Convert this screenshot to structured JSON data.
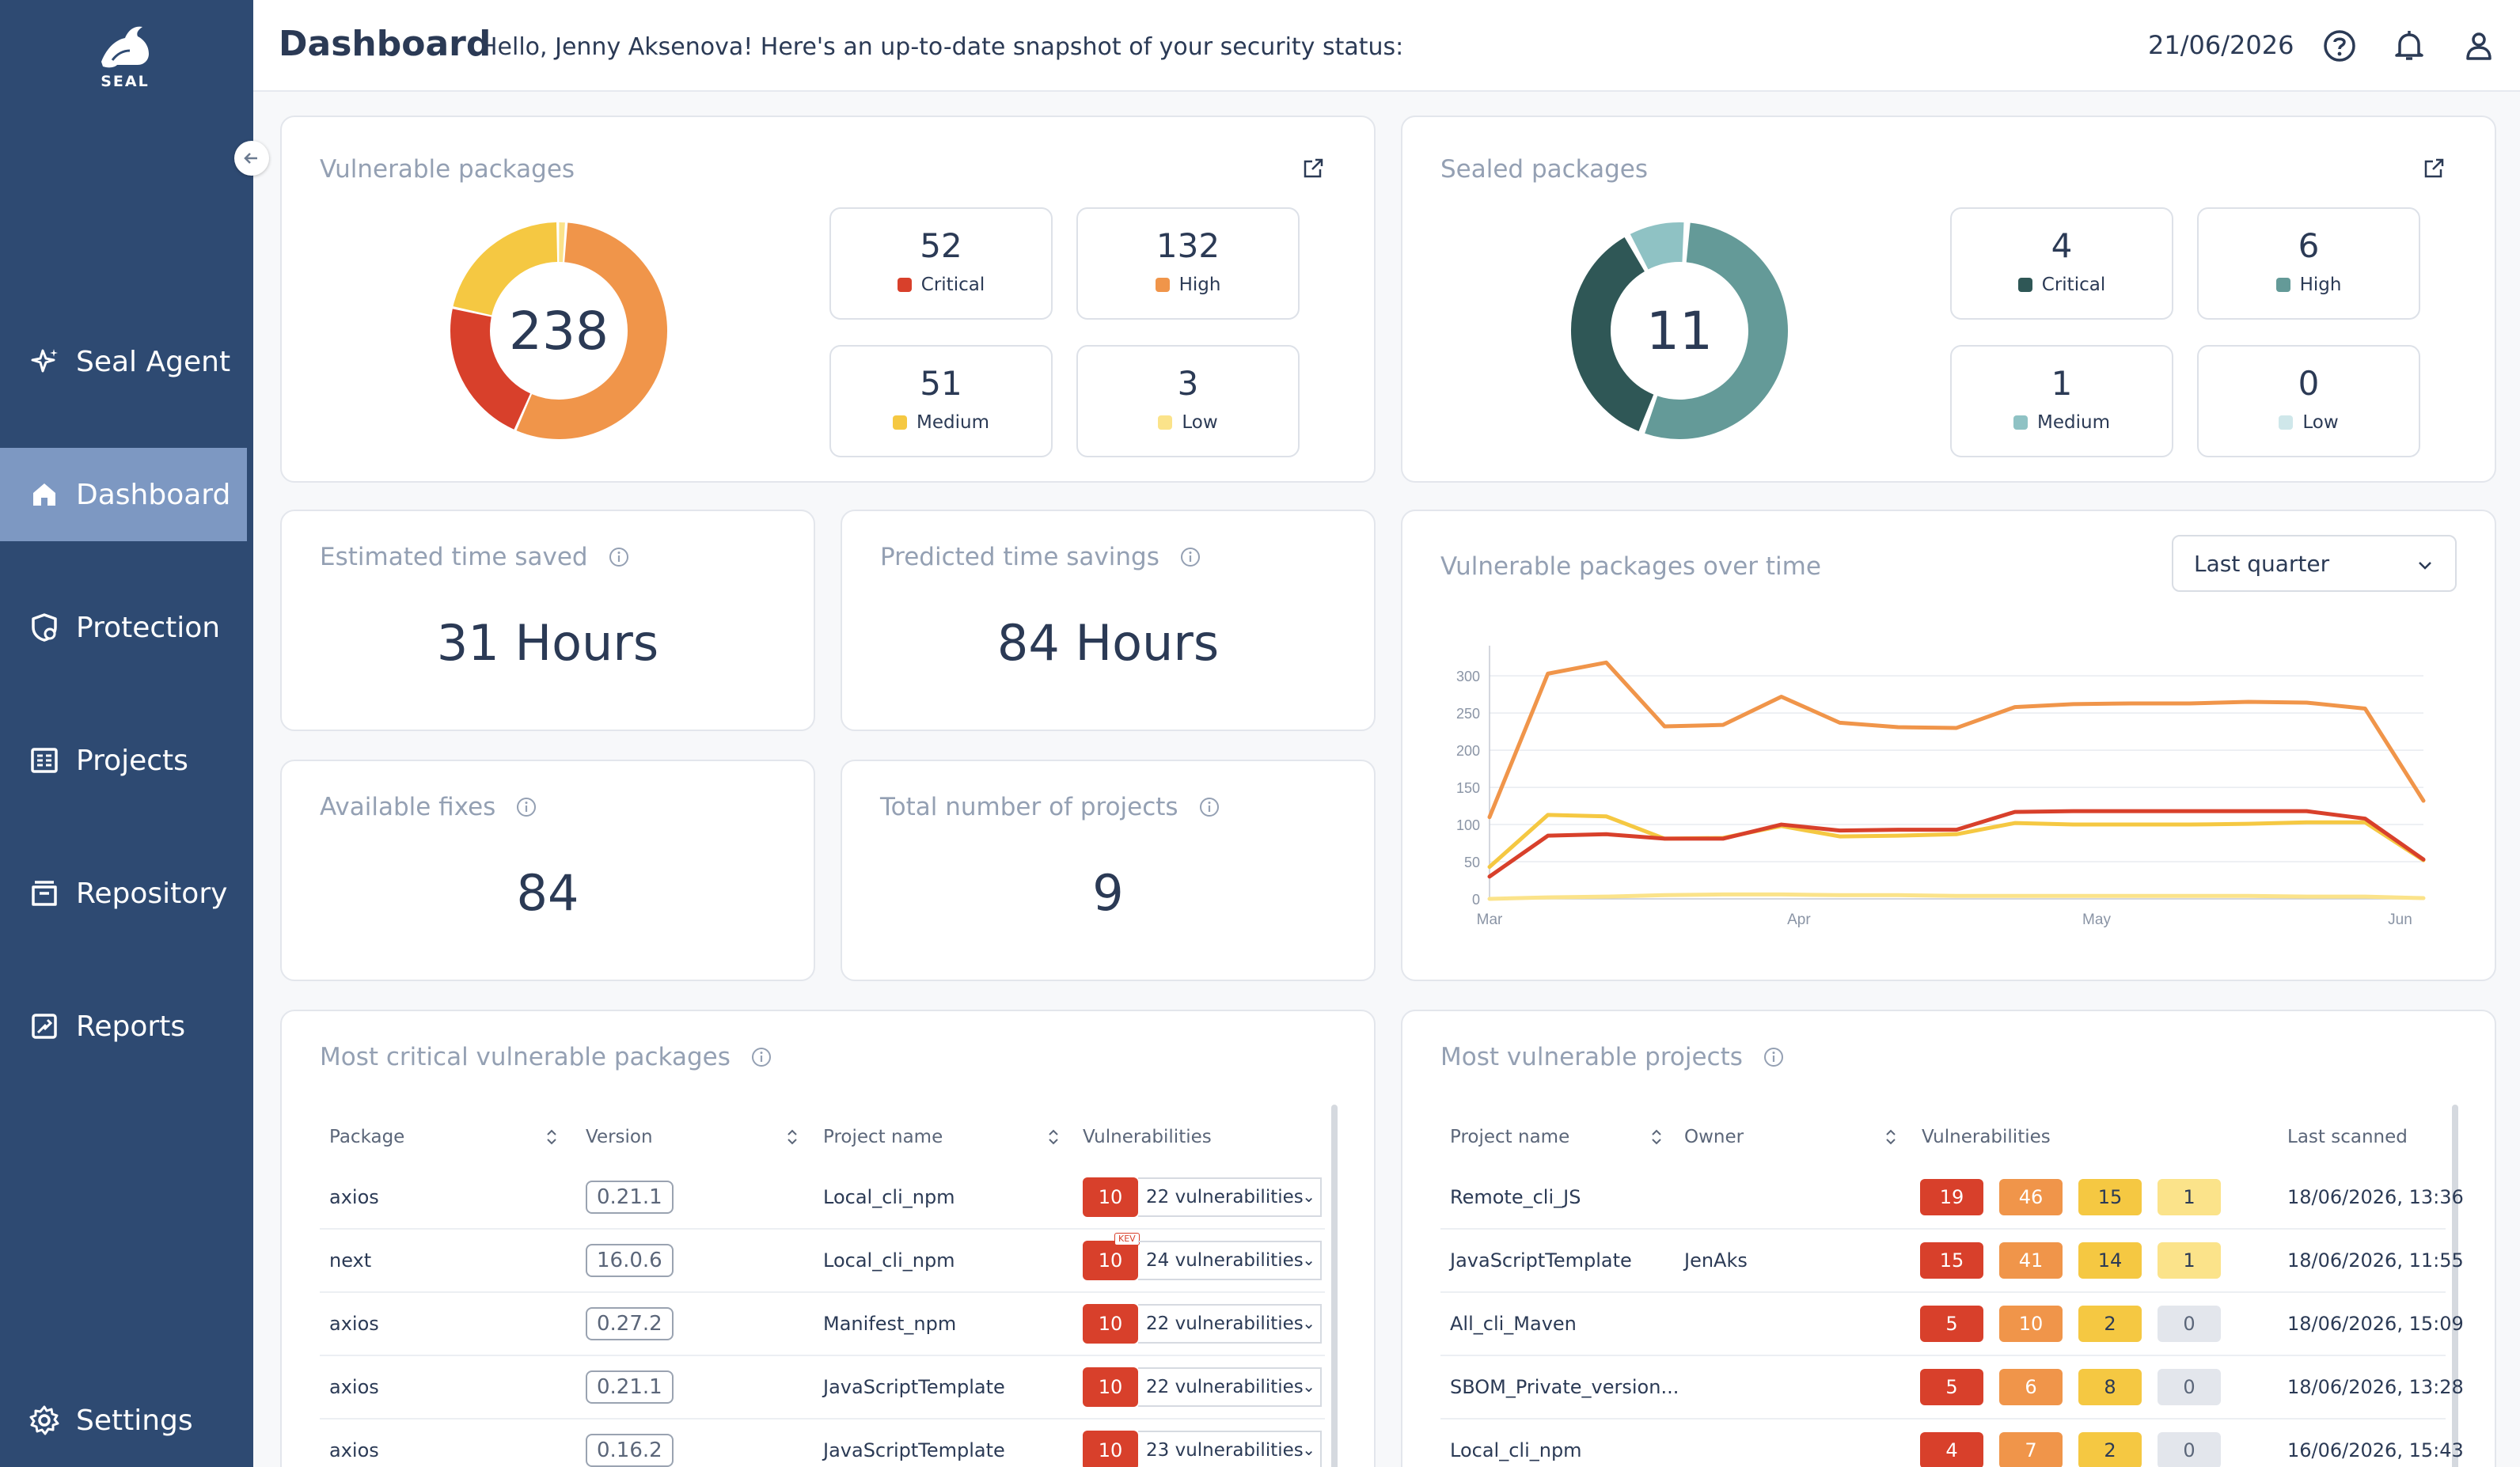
{
  "app": {
    "logo_text": "SEAL"
  },
  "sidebar": {
    "items": [
      {
        "label": "Seal Agent",
        "icon": "sparkle-star-icon"
      },
      {
        "label": "Dashboard",
        "icon": "home-icon",
        "active": true
      },
      {
        "label": "Protection",
        "icon": "shield-icon"
      },
      {
        "label": "Projects",
        "icon": "projects-icon"
      },
      {
        "label": "Repository",
        "icon": "archive-icon"
      },
      {
        "label": "Reports",
        "icon": "report-icon"
      },
      {
        "label": "Settings",
        "icon": "gear-icon"
      }
    ]
  },
  "header": {
    "title": "Dashboard",
    "greeting": "Hello, Jenny Aksenova! Here's an up-to-date snapshot of your security status:",
    "date": "21/06/2026"
  },
  "vulnerable_packages": {
    "title": "Vulnerable packages",
    "total": "238",
    "stats": [
      {
        "value": "52",
        "label": "Critical",
        "color": "#d8402b"
      },
      {
        "value": "132",
        "label": "High",
        "color": "#f0954a"
      },
      {
        "value": "51",
        "label": "Medium",
        "color": "#f5c842"
      },
      {
        "value": "3",
        "label": "Low",
        "color": "#fbe38a"
      }
    ]
  },
  "sealed_packages": {
    "title": "Sealed packages",
    "total": "11",
    "stats": [
      {
        "value": "4",
        "label": "Critical",
        "color": "#2f5756"
      },
      {
        "value": "6",
        "label": "High",
        "color": "#649a98"
      },
      {
        "value": "1",
        "label": "Medium",
        "color": "#8fc2c4"
      },
      {
        "value": "0",
        "label": "Low",
        "color": "#cfe7ea"
      }
    ]
  },
  "metrics": {
    "time_saved": {
      "title": "Estimated time saved",
      "value": "31 Hours"
    },
    "predicted": {
      "title": "Predicted time savings",
      "value": "84 Hours"
    },
    "fixes": {
      "title": "Available fixes",
      "value": "84"
    },
    "projects": {
      "title": "Total number of projects",
      "value": "9"
    }
  },
  "over_time": {
    "title": "Vulnerable packages over time",
    "range": "Last quarter"
  },
  "chart_data": {
    "type": "line",
    "x_ticks": [
      "Mar",
      "Apr",
      "May",
      "Jun"
    ],
    "x": [
      0,
      1,
      2,
      3,
      4,
      5,
      6,
      7,
      8,
      9,
      10,
      11,
      12,
      13,
      14,
      15,
      16
    ],
    "series": [
      {
        "color": "#f0954a",
        "values": [
          110,
          303,
          318,
          232,
          234,
          272,
          237,
          231,
          230,
          258,
          262,
          263,
          263,
          265,
          264,
          256,
          132
        ]
      },
      {
        "color": "#f5c842",
        "values": [
          43,
          113,
          111,
          81,
          82,
          98,
          84,
          85,
          87,
          102,
          100,
          100,
          100,
          101,
          103,
          103,
          52
        ]
      },
      {
        "color": "#d8402b",
        "values": [
          30,
          85,
          87,
          81,
          81,
          100,
          92,
          93,
          93,
          117,
          118,
          118,
          118,
          118,
          118,
          108,
          53
        ]
      },
      {
        "color": "#fbe38a",
        "values": [
          0,
          2,
          3,
          5,
          6,
          6,
          5,
          5,
          4,
          4,
          4,
          4,
          4,
          4,
          3,
          3,
          1
        ]
      }
    ],
    "y_ticks": [
      "0",
      "50",
      "100",
      "150",
      "200",
      "250",
      "300"
    ],
    "ylim": [
      0,
      330
    ]
  },
  "critical_packages": {
    "title": "Most critical vulnerable packages",
    "columns": [
      "Package",
      "Version",
      "Project name",
      "Vulnerabilities"
    ],
    "rows": [
      {
        "package": "axios",
        "version": "0.21.1",
        "project": "Local_cli_npm",
        "count": "10",
        "vulns": "22 vulnerabilities",
        "kev": ""
      },
      {
        "package": "next",
        "version": "16.0.6",
        "project": "Local_cli_npm",
        "count": "10",
        "vulns": "24 vulnerabilities",
        "kev": "KEV"
      },
      {
        "package": "axios",
        "version": "0.27.2",
        "project": "Manifest_npm",
        "count": "10",
        "vulns": "22 vulnerabilities",
        "kev": ""
      },
      {
        "package": "axios",
        "version": "0.21.1",
        "project": "JavaScriptTemplate",
        "count": "10",
        "vulns": "22 vulnerabilities",
        "kev": ""
      },
      {
        "package": "axios",
        "version": "0.16.2",
        "project": "JavaScriptTemplate",
        "count": "10",
        "vulns": "23 vulnerabilities",
        "kev": ""
      }
    ]
  },
  "vulnerable_projects": {
    "title": "Most vulnerable projects",
    "columns": [
      "Project name",
      "Owner",
      "Vulnerabilities",
      "Last scanned"
    ],
    "badge_colors": [
      "#d8402b",
      "#f0954a",
      "#f5c842",
      "#fbe38a",
      "#e3e6ec"
    ],
    "rows": [
      {
        "project": "Remote_cli_JS",
        "owner": "",
        "counts": [
          "19",
          "46",
          "15",
          "1"
        ],
        "scanned": "18/06/2026, 13:36"
      },
      {
        "project": "JavaScriptTemplate",
        "owner": "JenAks",
        "counts": [
          "15",
          "41",
          "14",
          "1"
        ],
        "scanned": "18/06/2026, 11:55"
      },
      {
        "project": "All_cli_Maven",
        "owner": "",
        "counts": [
          "5",
          "10",
          "2",
          "0"
        ],
        "scanned": "18/06/2026, 15:09"
      },
      {
        "project": "SBOM_Private_version...",
        "owner": "",
        "counts": [
          "5",
          "6",
          "8",
          "0"
        ],
        "scanned": "18/06/2026, 13:28"
      },
      {
        "project": "Local_cli_npm",
        "owner": "",
        "counts": [
          "4",
          "7",
          "2",
          "0"
        ],
        "scanned": "16/06/2026, 15:43"
      }
    ]
  }
}
